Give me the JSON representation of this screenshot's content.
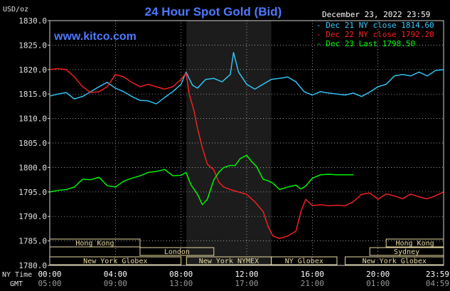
{
  "chart_data": {
    "type": "line",
    "title": "24 Hour Spot Gold (Bid)",
    "brand": "www.kitco.com",
    "timestamp": "December 23, 2022 23:59",
    "ylabel": "USD/oz",
    "ylim": [
      1780,
      1830
    ],
    "y_ticks": [
      1780,
      1785,
      1790,
      1795,
      1800,
      1805,
      1810,
      1815,
      1820,
      1825,
      1830
    ],
    "y_tick_labels": [
      "1780.0",
      "1785.0",
      "1790.0",
      "1795.0",
      "1800.0",
      "1805.0",
      "1810.0",
      "1815.0",
      "1820.0",
      "1825.0",
      "1830.0"
    ],
    "xlim": [
      0,
      24
    ],
    "x_ticks": [
      0,
      4,
      8,
      12,
      16,
      20,
      24
    ],
    "x_tick_labels_ny": [
      "00:00",
      "04:00",
      "08:00",
      "12:00",
      "16:00",
      "20:00",
      "23:59"
    ],
    "x_tick_labels_gmt": [
      "05:00",
      "09:00",
      "13:00",
      "17:00",
      "21:00",
      "01:00",
      "04:59"
    ],
    "row_label_ny": "NY Time",
    "row_label_gmt": "GMT",
    "nymex_shade": [
      8.33,
      13.5
    ],
    "colors": {
      "dec21": "#33ccff",
      "dec22": "#ff2020",
      "dec23": "#00ff00",
      "bg": "#000000",
      "grid": "#d0d0d0"
    },
    "series": [
      {
        "key": "dec21",
        "name": "Dec 21 NY close 1814.60",
        "x": [
          0,
          0.5,
          1,
          1.5,
          2,
          2.5,
          3,
          3.5,
          4,
          4.5,
          5,
          5.5,
          6,
          6.5,
          7,
          7.5,
          8,
          8.3,
          8.7,
          9,
          9.5,
          10,
          10.5,
          11,
          11.2,
          11.5,
          12,
          12.5,
          13,
          13.5,
          14,
          14.5,
          15,
          15.5,
          16,
          16.5,
          17,
          17.5,
          18,
          18.5,
          19,
          19.5,
          20,
          20.5,
          21,
          21.5,
          22,
          22.5,
          23,
          23.5,
          24
        ],
        "y": [
          1814.6,
          1815,
          1815.3,
          1814,
          1814.5,
          1815.5,
          1816.5,
          1817.4,
          1816.2,
          1815.5,
          1814.5,
          1813.7,
          1813.6,
          1813,
          1814.3,
          1815.5,
          1817,
          1819.5,
          1816.8,
          1816.2,
          1818,
          1818.2,
          1817.5,
          1819,
          1823.5,
          1819.5,
          1817,
          1816,
          1817,
          1818,
          1818.2,
          1818.5,
          1817.5,
          1815.5,
          1814.8,
          1815.5,
          1815.2,
          1815,
          1814.8,
          1815.2,
          1814.5,
          1815.4,
          1816.5,
          1817,
          1818.7,
          1819,
          1818.7,
          1819.5,
          1818.7,
          1819.8,
          1820
        ]
      },
      {
        "key": "dec22",
        "name": "Dec 22 NY close 1792.20",
        "x": [
          0,
          0.5,
          1,
          1.5,
          2,
          2.5,
          3,
          3.5,
          4,
          4.5,
          5,
          5.5,
          6,
          6.5,
          7,
          7.5,
          8,
          8.3,
          8.5,
          8.8,
          9,
          9.3,
          9.6,
          10,
          10.3,
          10.6,
          11,
          11.5,
          12,
          12.5,
          13,
          13.3,
          13.6,
          14,
          14.5,
          15,
          15.3,
          15.6,
          16,
          16.5,
          17,
          17.5,
          18,
          18.5,
          19,
          19.5,
          20,
          20.5,
          21,
          21.5,
          22,
          22.5,
          23,
          23.5,
          24
        ],
        "y": [
          1820,
          1820.2,
          1820,
          1818.5,
          1816.5,
          1815.3,
          1815.5,
          1816.5,
          1819,
          1818.5,
          1817.4,
          1816.5,
          1817,
          1816.5,
          1816,
          1816.5,
          1818,
          1819.3,
          1815,
          1811.5,
          1808,
          1804,
          1800.7,
          1799.5,
          1797,
          1796,
          1795.5,
          1795,
          1794.5,
          1793,
          1791,
          1788,
          1786,
          1785.5,
          1786,
          1787,
          1791,
          1793.5,
          1792.2,
          1792.4,
          1792.2,
          1792.3,
          1792.2,
          1793,
          1794.5,
          1794.8,
          1793.5,
          1794.6,
          1794.2,
          1793.6,
          1794.6,
          1794,
          1793.6,
          1794.2,
          1795
        ]
      },
      {
        "key": "dec23",
        "name": "Dec 23 Last 1798.50",
        "x": [
          0,
          0.5,
          1,
          1.5,
          2,
          2.5,
          3,
          3.5,
          4,
          4.5,
          5,
          5.5,
          6,
          6.5,
          7,
          7.5,
          8,
          8.3,
          8.6,
          9,
          9.3,
          9.6,
          10,
          10.3,
          10.6,
          11,
          11.3,
          11.6,
          12,
          12.3,
          12.6,
          13,
          13.3,
          13.6,
          14,
          14.5,
          15,
          15.3,
          15.6,
          16,
          16.5,
          17,
          17.5,
          18,
          18.5
        ],
        "y": [
          1795,
          1795.3,
          1795.5,
          1796,
          1797.6,
          1797.5,
          1798,
          1796.3,
          1796,
          1797.2,
          1797.8,
          1798.3,
          1799,
          1799.2,
          1799.6,
          1798.3,
          1798.4,
          1799,
          1796.5,
          1794.5,
          1792.4,
          1793.5,
          1797.5,
          1799,
          1800,
          1800.4,
          1800.4,
          1801.8,
          1802.5,
          1801.2,
          1800.2,
          1797.6,
          1797.3,
          1796.8,
          1795.5,
          1796,
          1796.4,
          1795.6,
          1796.2,
          1797.8,
          1798.5,
          1798.6,
          1798.5,
          1798.5,
          1798.5
        ]
      }
    ],
    "sessions": [
      {
        "label": "Hong Kong",
        "row": 0,
        "x0": 0,
        "x1": 5.5
      },
      {
        "label": "Hong Kong",
        "row": 0,
        "x0": 20.5,
        "x1": 24
      },
      {
        "label": "London",
        "row": 1,
        "x0": 5.5,
        "x1": 10
      },
      {
        "label": "Sydney",
        "row": 1,
        "x0": 19.5,
        "x1": 24
      },
      {
        "label": "New York Globex",
        "row": 2,
        "x0": 0,
        "x1": 8
      },
      {
        "label": "New York NYMEX",
        "row": 2,
        "x0": 8.33,
        "x1": 13.5
      },
      {
        "label": "NY Globex",
        "row": 2,
        "x0": 13.5,
        "x1": 17.5
      },
      {
        "label": "New York Globex",
        "row": 2,
        "x0": 18,
        "x1": 24
      }
    ]
  }
}
